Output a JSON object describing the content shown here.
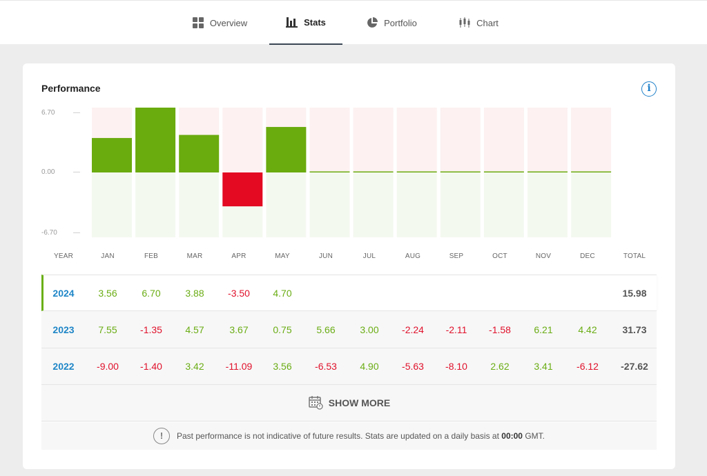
{
  "tabs": [
    {
      "label": "Overview",
      "icon": "grid-icon",
      "active": false
    },
    {
      "label": "Stats",
      "icon": "bar-chart-icon",
      "active": true
    },
    {
      "label": "Portfolio",
      "icon": "pie-chart-icon",
      "active": false
    },
    {
      "label": "Chart",
      "icon": "candlestick-icon",
      "active": false
    }
  ],
  "card": {
    "title": "Performance",
    "info_icon": "info-icon"
  },
  "chart_data": {
    "type": "bar",
    "categories": [
      "JAN",
      "FEB",
      "MAR",
      "APR",
      "MAY",
      "JUN",
      "JUL",
      "AUG",
      "SEP",
      "OCT",
      "NOV",
      "DEC"
    ],
    "series": [
      {
        "values": [
          3.56,
          6.7,
          3.88,
          -3.5,
          4.7,
          0,
          0,
          0,
          0,
          0,
          0,
          0
        ]
      }
    ],
    "yticks": [
      "6.70",
      "0.00",
      "-6.70"
    ],
    "ylim": [
      -6.7,
      6.7
    ],
    "colors": {
      "positive": "#6aab0e",
      "negative": "#e30a22",
      "bg_pos": "#fdf1f1",
      "bg_neg": "#f4f9f0"
    }
  },
  "table": {
    "headers": [
      "YEAR",
      "JAN",
      "FEB",
      "MAR",
      "APR",
      "MAY",
      "JUN",
      "JUL",
      "AUG",
      "SEP",
      "OCT",
      "NOV",
      "DEC",
      "TOTAL"
    ],
    "rows": [
      {
        "year": "2024",
        "values": [
          "3.56",
          "6.70",
          "3.88",
          "-3.50",
          "4.70",
          "",
          "",
          "",
          "",
          "",
          "",
          ""
        ],
        "total": "15.98"
      },
      {
        "year": "2023",
        "values": [
          "7.55",
          "-1.35",
          "4.57",
          "3.67",
          "0.75",
          "5.66",
          "3.00",
          "-2.24",
          "-2.11",
          "-1.58",
          "6.21",
          "4.42"
        ],
        "total": "31.73"
      },
      {
        "year": "2022",
        "values": [
          "-9.00",
          "-1.40",
          "3.42",
          "-11.09",
          "3.56",
          "-6.53",
          "4.90",
          "-5.63",
          "-8.10",
          "2.62",
          "3.41",
          "-6.12"
        ],
        "total": "-27.62"
      }
    ]
  },
  "show_more": {
    "label": "SHOW MORE",
    "icon": "calendar-icon"
  },
  "disclaimer": {
    "icon": "warning-icon",
    "text": "Past performance is not indicative of future results. Stats are updated on a daily basis at",
    "time": "00:00",
    "suffix": "GMT."
  }
}
